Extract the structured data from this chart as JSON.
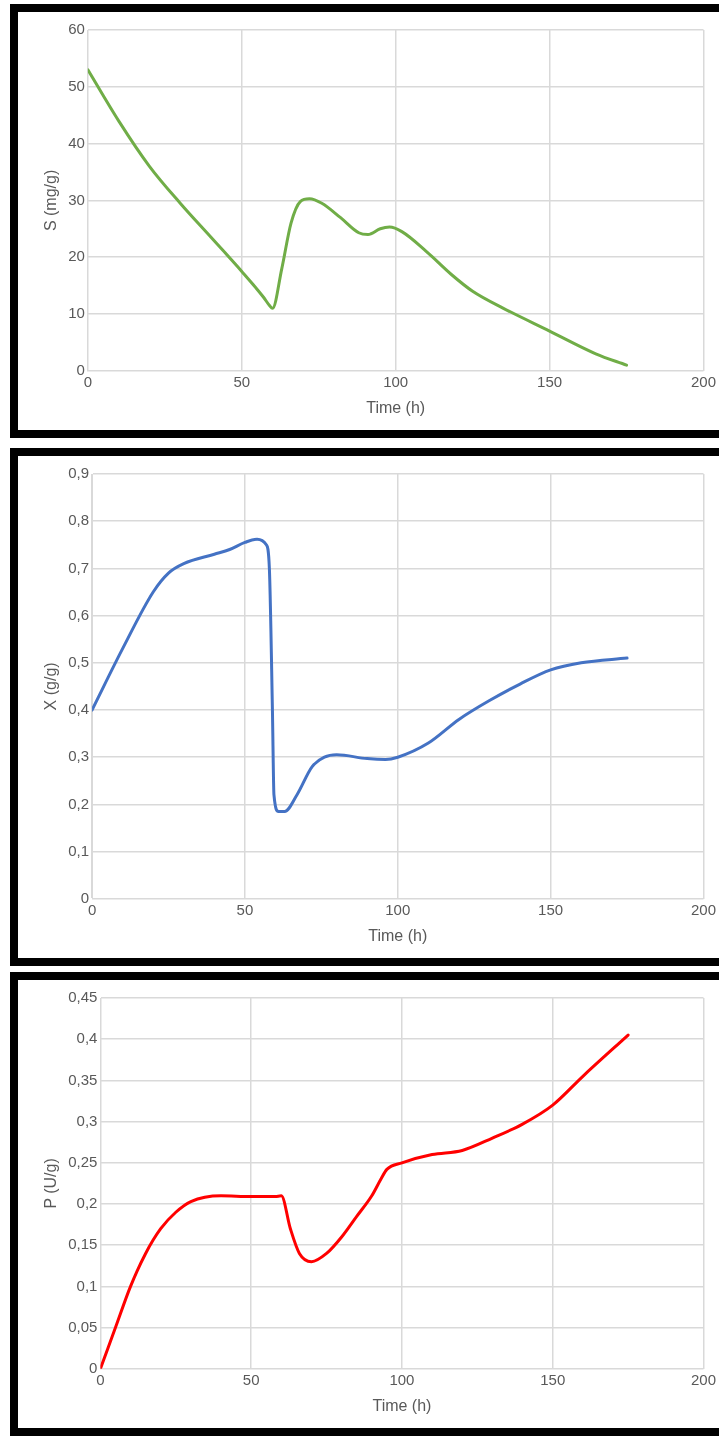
{
  "chart_data": [
    {
      "type": "line",
      "xlabel": "Time (h)",
      "ylabel": "S (mg/g)",
      "color": "#70ad47",
      "grid": true,
      "xlim": [
        0,
        200
      ],
      "xticks": [
        0,
        50,
        100,
        150,
        200
      ],
      "ylim": [
        0,
        60
      ],
      "yticks": [
        0,
        10,
        20,
        30,
        40,
        50,
        60
      ],
      "x": [
        0,
        10,
        20,
        30,
        40,
        50,
        57,
        59,
        60,
        63,
        66,
        69,
        72,
        76,
        82,
        88,
        91,
        95,
        98,
        102,
        110,
        118,
        125,
        135,
        150,
        165,
        175
      ],
      "values": [
        53,
        44,
        36,
        29.5,
        23.5,
        17.5,
        13,
        11.5,
        11,
        18,
        26,
        29.8,
        30.3,
        29.5,
        27,
        24.3,
        24,
        25,
        25.3,
        24.5,
        21,
        17,
        14,
        11,
        7,
        3,
        1
      ]
    },
    {
      "type": "line",
      "xlabel": "Time (h)",
      "ylabel": "X (g/g)",
      "color": "#4472c4",
      "grid": true,
      "xlim": [
        0,
        200
      ],
      "xticks": [
        0,
        50,
        100,
        150,
        200
      ],
      "ylim": [
        0,
        0.9
      ],
      "yticks": [
        0,
        {
          "value": 0.1,
          "label": "0,1"
        },
        {
          "value": 0.2,
          "label": "0,2"
        },
        {
          "value": 0.3,
          "label": "0,3"
        },
        {
          "value": 0.4,
          "label": "0,4"
        },
        {
          "value": 0.5,
          "label": "0,5"
        },
        {
          "value": 0.6,
          "label": "0,6"
        },
        {
          "value": 0.7,
          "label": "0,7"
        },
        {
          "value": 0.8,
          "label": "0,8"
        },
        {
          "value": 0.9,
          "label": "0,9"
        }
      ],
      "x": [
        0,
        10,
        20,
        25,
        30,
        40,
        45,
        50,
        54,
        57,
        58,
        59,
        59.5,
        61,
        63,
        67,
        72,
        76,
        80,
        90,
        96,
        100,
        110,
        120,
        130,
        140,
        150,
        160,
        175
      ],
      "values": [
        0.4,
        0.53,
        0.65,
        0.69,
        0.71,
        0.73,
        0.74,
        0.755,
        0.762,
        0.75,
        0.7,
        0.4,
        0.22,
        0.185,
        0.185,
        0.22,
        0.28,
        0.3,
        0.305,
        0.297,
        0.295,
        0.3,
        0.33,
        0.38,
        0.42,
        0.455,
        0.485,
        0.5,
        0.51
      ]
    },
    {
      "type": "line",
      "xlabel": "Time (h)",
      "ylabel": "P (U/g)",
      "color": "#ff0000",
      "grid": true,
      "xlim": [
        0,
        200
      ],
      "xticks": [
        0,
        50,
        100,
        150,
        200
      ],
      "ylim": [
        0,
        0.45
      ],
      "yticks": [
        0,
        {
          "value": 0.05,
          "label": "0,05"
        },
        {
          "value": 0.1,
          "label": "0,1"
        },
        {
          "value": 0.15,
          "label": "0,15"
        },
        {
          "value": 0.2,
          "label": "0,2"
        },
        {
          "value": 0.25,
          "label": "0,25"
        },
        {
          "value": 0.3,
          "label": "0,3"
        },
        {
          "value": 0.35,
          "label": "0,35"
        },
        {
          "value": 0.4,
          "label": "0,4"
        },
        {
          "value": 0.45,
          "label": "0,45"
        }
      ],
      "x": [
        0,
        5,
        10,
        15,
        20,
        25,
        30,
        40,
        50,
        58,
        60,
        63,
        66,
        70,
        75,
        80,
        85,
        90,
        93,
        95,
        100,
        110,
        120,
        130,
        140,
        150,
        160,
        175
      ],
      "values": [
        0,
        0.05,
        0.1,
        0.14,
        0.17,
        0.19,
        0.203,
        0.21,
        0.209,
        0.209,
        0.21,
        0.17,
        0.14,
        0.13,
        0.14,
        0.16,
        0.185,
        0.21,
        0.23,
        0.242,
        0.25,
        0.26,
        0.265,
        0.28,
        0.297,
        0.32,
        0.355,
        0.405
      ]
    }
  ]
}
